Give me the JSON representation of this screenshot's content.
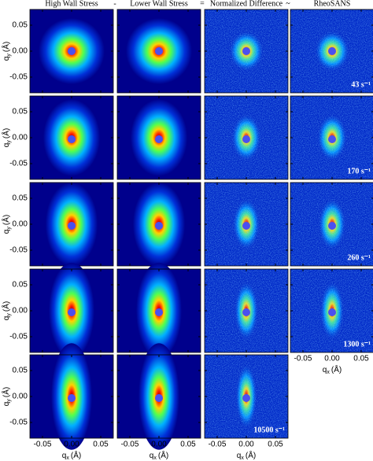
{
  "header": {
    "columns": [
      "High Wall Stress",
      "Lower Wall Stress",
      "Normalized Difference",
      "RheoSANS"
    ],
    "operators": [
      "-",
      "=",
      "~"
    ]
  },
  "rows": [
    {
      "label": "43 s⁻¹"
    },
    {
      "label": "170 s⁻¹"
    },
    {
      "label": "260 s⁻¹"
    },
    {
      "label": "1300 s⁻¹"
    },
    {
      "label": "10500 s⁻¹"
    }
  ],
  "y_axis_label": {
    "symbol": "q",
    "subscript": "y",
    "unit": "(Å)"
  },
  "x_axis_label": {
    "symbol": "q",
    "subscript": "x",
    "unit": "(Å)"
  },
  "y_ticks": [
    "0.05",
    "0.00",
    "-0.05"
  ],
  "x_ticks": [
    "-0.05",
    "0.00",
    "0.05"
  ]
}
